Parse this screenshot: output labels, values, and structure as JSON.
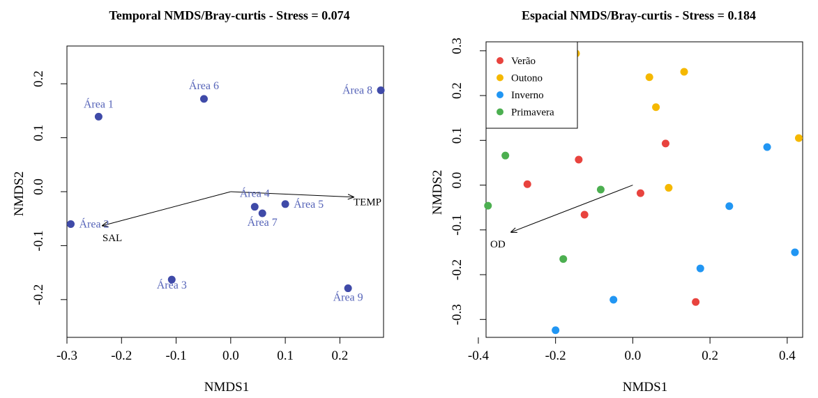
{
  "chart_data": [
    {
      "type": "scatter",
      "title": "Temporal NMDS/Bray-curtis - Stress = 0.074",
      "xlabel": "NMDS1",
      "ylabel": "NMDS2",
      "xlim": [
        -0.3,
        0.28
      ],
      "ylim": [
        -0.27,
        0.27
      ],
      "xticks": [
        "-0.3",
        "-0.2",
        "-0.1",
        "0.0",
        "0.1",
        "0.2"
      ],
      "yticks": [
        "-0.2",
        "-0.1",
        "0.0",
        "0.1",
        "0.2"
      ],
      "grid": false,
      "point_color": "#3F4AA8",
      "label_color": "#5563B8",
      "points": [
        {
          "label": "Área 1",
          "x": -0.242,
          "y": 0.139
        },
        {
          "label": "Área 2",
          "x": -0.293,
          "y": -0.06
        },
        {
          "label": "Área 3",
          "x": -0.108,
          "y": -0.163
        },
        {
          "label": "Área 4",
          "x": 0.044,
          "y": -0.028
        },
        {
          "label": "Área 5",
          "x": 0.1,
          "y": -0.023
        },
        {
          "label": "Área 6",
          "x": -0.049,
          "y": 0.172
        },
        {
          "label": "Área 7",
          "x": 0.058,
          "y": -0.04
        },
        {
          "label": "Área 8",
          "x": 0.275,
          "y": 0.188
        },
        {
          "label": "Área 9",
          "x": 0.215,
          "y": -0.179
        }
      ],
      "vectors": [
        {
          "label": "TEMP",
          "x": 0.225,
          "y": -0.01
        },
        {
          "label": "SAL",
          "x": -0.235,
          "y": -0.063
        }
      ]
    },
    {
      "type": "scatter",
      "title": "Espacial NMDS/Bray-curtis - Stress = 0.184",
      "xlabel": "NMDS1",
      "ylabel": "NMDS2",
      "xlim": [
        -0.38,
        0.44
      ],
      "ylim": [
        -0.34,
        0.32
      ],
      "xticks": [
        "-0.4",
        "-0.2",
        "0.0",
        "0.2",
        "0.4"
      ],
      "yticks": [
        "-0.3",
        "-0.2",
        "-0.1",
        "0.0",
        "0.1",
        "0.2",
        "0.3"
      ],
      "grid": false,
      "legend_position": "top-left",
      "series": [
        {
          "name": "Verão",
          "color": "#E8433E",
          "points": [
            {
              "x": -0.14,
              "y": 0.057
            },
            {
              "x": 0.085,
              "y": 0.093
            },
            {
              "x": -0.273,
              "y": 0.002
            },
            {
              "x": 0.02,
              "y": -0.018
            },
            {
              "x": -0.125,
              "y": -0.066
            },
            {
              "x": 0.163,
              "y": -0.261
            }
          ]
        },
        {
          "name": "Outono",
          "color": "#F5B800",
          "points": [
            {
              "x": -0.147,
              "y": 0.294
            },
            {
              "x": 0.043,
              "y": 0.241
            },
            {
              "x": 0.133,
              "y": 0.253
            },
            {
              "x": 0.06,
              "y": 0.174
            },
            {
              "x": 0.43,
              "y": 0.105
            },
            {
              "x": 0.093,
              "y": -0.006
            }
          ]
        },
        {
          "name": "Inverno",
          "color": "#2196F3",
          "points": [
            {
              "x": 0.348,
              "y": 0.085
            },
            {
              "x": 0.25,
              "y": -0.047
            },
            {
              "x": 0.42,
              "y": -0.15
            },
            {
              "x": 0.175,
              "y": -0.186
            },
            {
              "x": -0.05,
              "y": -0.256
            },
            {
              "x": -0.2,
              "y": -0.324
            }
          ]
        },
        {
          "name": "Primavera",
          "color": "#4CAF50",
          "points": [
            {
              "x": -0.338,
              "y": 0.138
            },
            {
              "x": -0.33,
              "y": 0.066
            },
            {
              "x": -0.083,
              "y": -0.01
            },
            {
              "x": -0.375,
              "y": -0.046
            },
            {
              "x": -0.18,
              "y": -0.165
            }
          ]
        }
      ],
      "vectors": [
        {
          "label": "OD",
          "x": -0.315,
          "y": -0.105
        }
      ]
    }
  ]
}
